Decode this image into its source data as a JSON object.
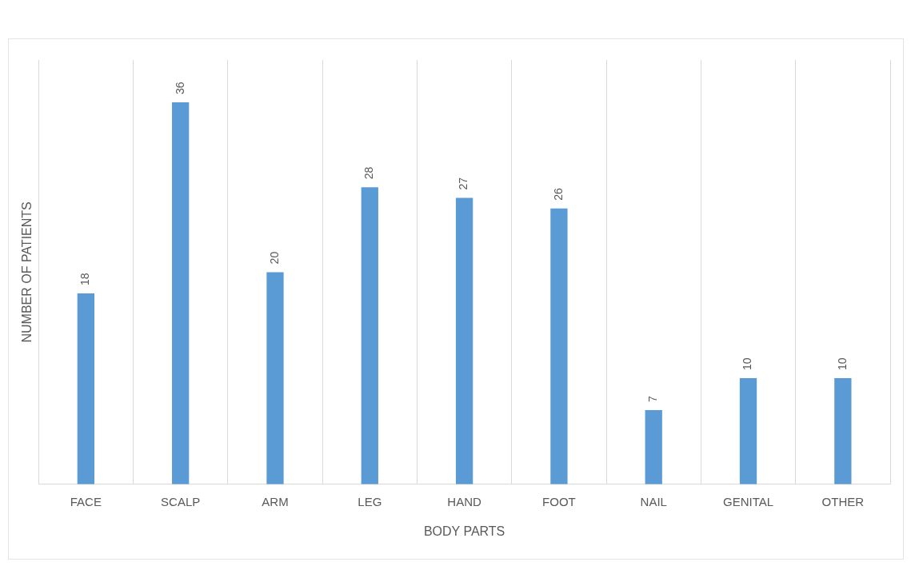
{
  "chart_data": {
    "type": "bar",
    "xlabel": "BODY PARTS",
    "ylabel": "NUMBER OF PATIENTS",
    "categories": [
      "FACE",
      "SCALP",
      "ARM",
      "LEG",
      "HAND",
      "FOOT",
      "NAIL",
      "GENITAL",
      "OTHER"
    ],
    "values": [
      18,
      36,
      20,
      28,
      27,
      26,
      7,
      10,
      10
    ],
    "color": "#5b9bd5",
    "data_labels": true,
    "grid": "x",
    "legend": false
  }
}
